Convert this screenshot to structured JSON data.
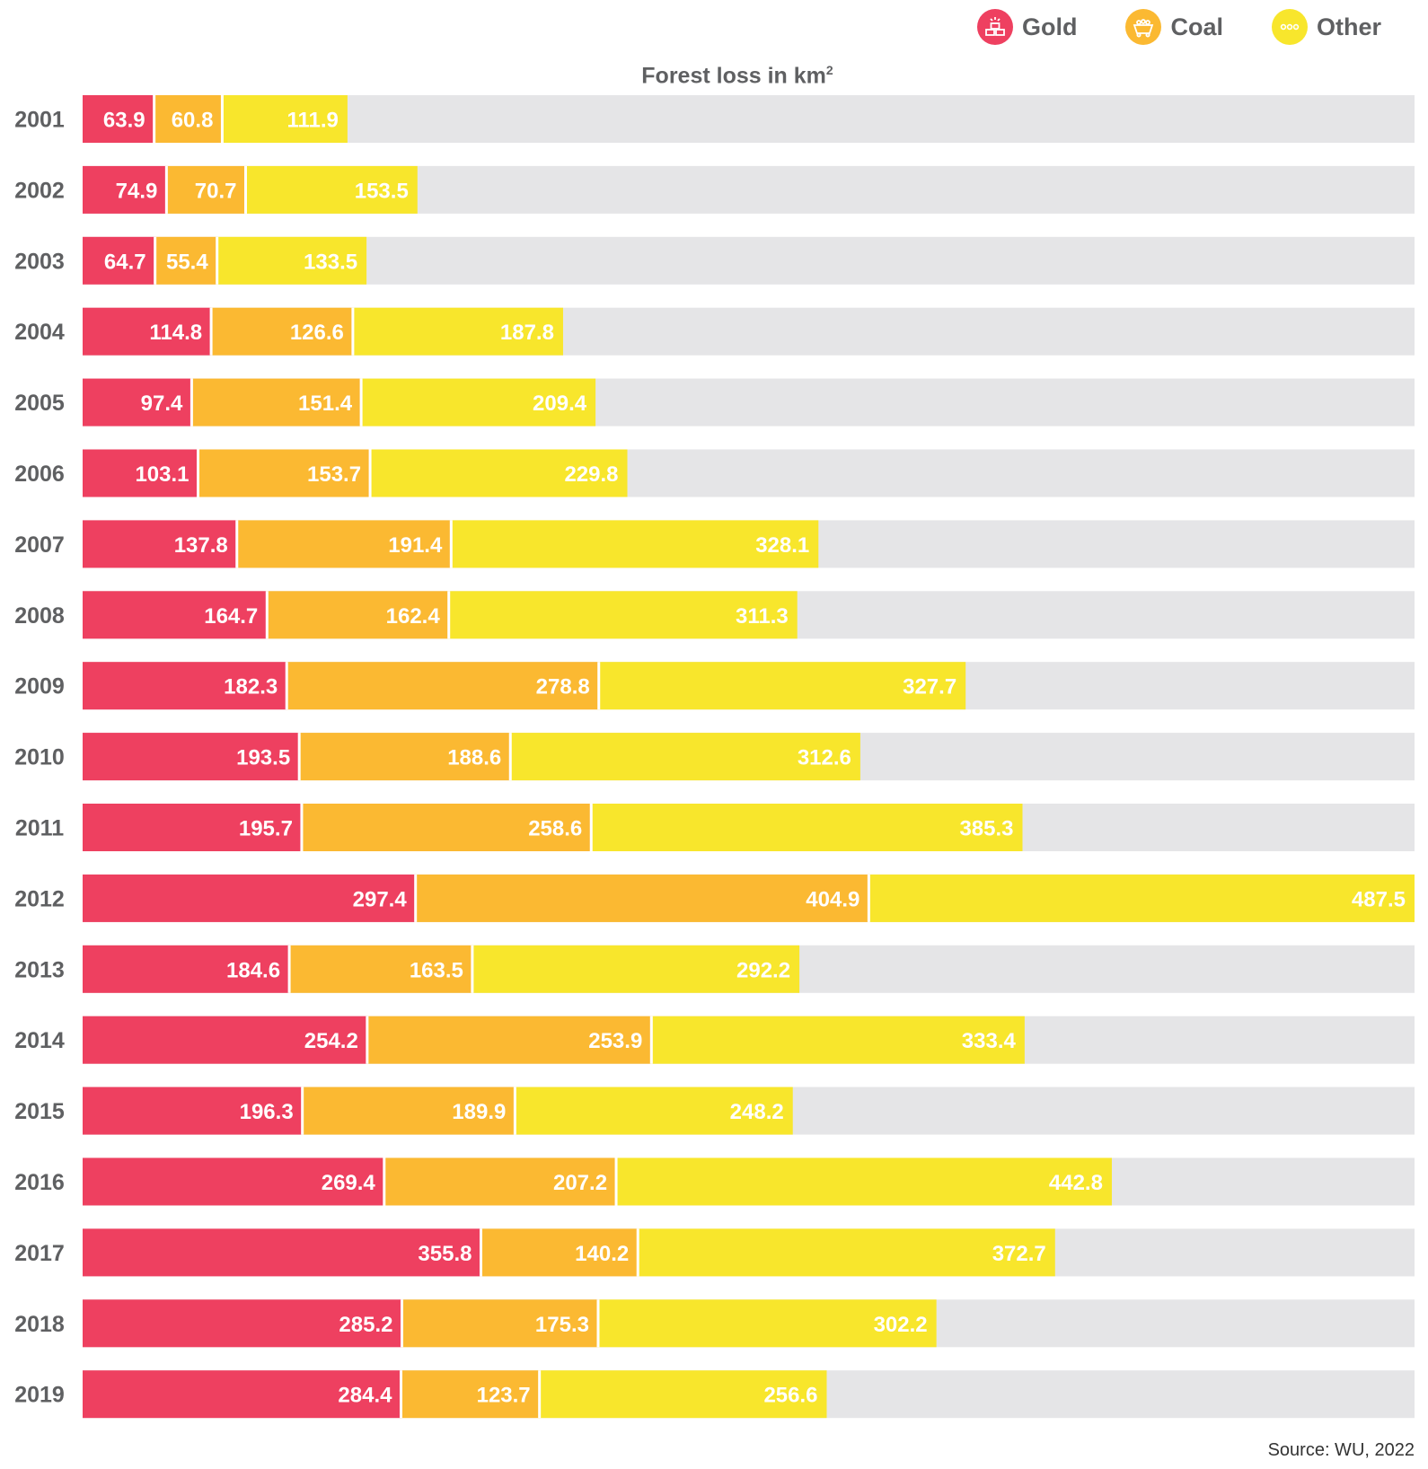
{
  "legend": [
    {
      "label": "Gold",
      "color": "#ee4060",
      "icon": "gold-bars-icon"
    },
    {
      "label": "Coal",
      "color": "#fbb932",
      "icon": "coal-cart-icon"
    },
    {
      "label": "Other",
      "color": "#f8e62c",
      "icon": "ellipsis-icon"
    }
  ],
  "chart_title": "Forest loss in km",
  "chart_title_superscript": "2",
  "source": "Source: WU, 2022",
  "chart_data": {
    "type": "bar",
    "orientation": "horizontal",
    "stacked": true,
    "title": "Forest loss in km²",
    "categories": [
      "2001",
      "2002",
      "2003",
      "2004",
      "2005",
      "2006",
      "2007",
      "2008",
      "2009",
      "2010",
      "2011",
      "2012",
      "2013",
      "2014",
      "2015",
      "2016",
      "2017",
      "2018",
      "2019"
    ],
    "series": [
      {
        "name": "Gold",
        "color": "#ee4060",
        "values": [
          63.9,
          74.9,
          64.7,
          114.8,
          97.4,
          103.1,
          137.8,
          164.7,
          182.3,
          193.5,
          195.7,
          297.4,
          184.6,
          254.2,
          196.3,
          269.4,
          355.8,
          285.2,
          284.4
        ]
      },
      {
        "name": "Coal",
        "color": "#fbb932",
        "values": [
          60.8,
          70.7,
          55.4,
          126.6,
          151.4,
          153.7,
          191.4,
          162.4,
          278.8,
          188.6,
          258.6,
          404.9,
          163.5,
          253.9,
          189.9,
          207.2,
          140.2,
          175.3,
          123.7
        ]
      },
      {
        "name": "Other",
        "color": "#f8e62c",
        "values": [
          111.9,
          153.5,
          133.5,
          187.8,
          209.4,
          229.8,
          328.1,
          311.3,
          327.7,
          312.6,
          385.3,
          487.5,
          292.2,
          333.4,
          248.2,
          442.8,
          372.7,
          302.2,
          256.6
        ]
      }
    ],
    "xlim": [
      0,
      1189.8
    ],
    "background_track_color": "#e5e5e7",
    "grid": false,
    "legend_position": "top-right"
  }
}
